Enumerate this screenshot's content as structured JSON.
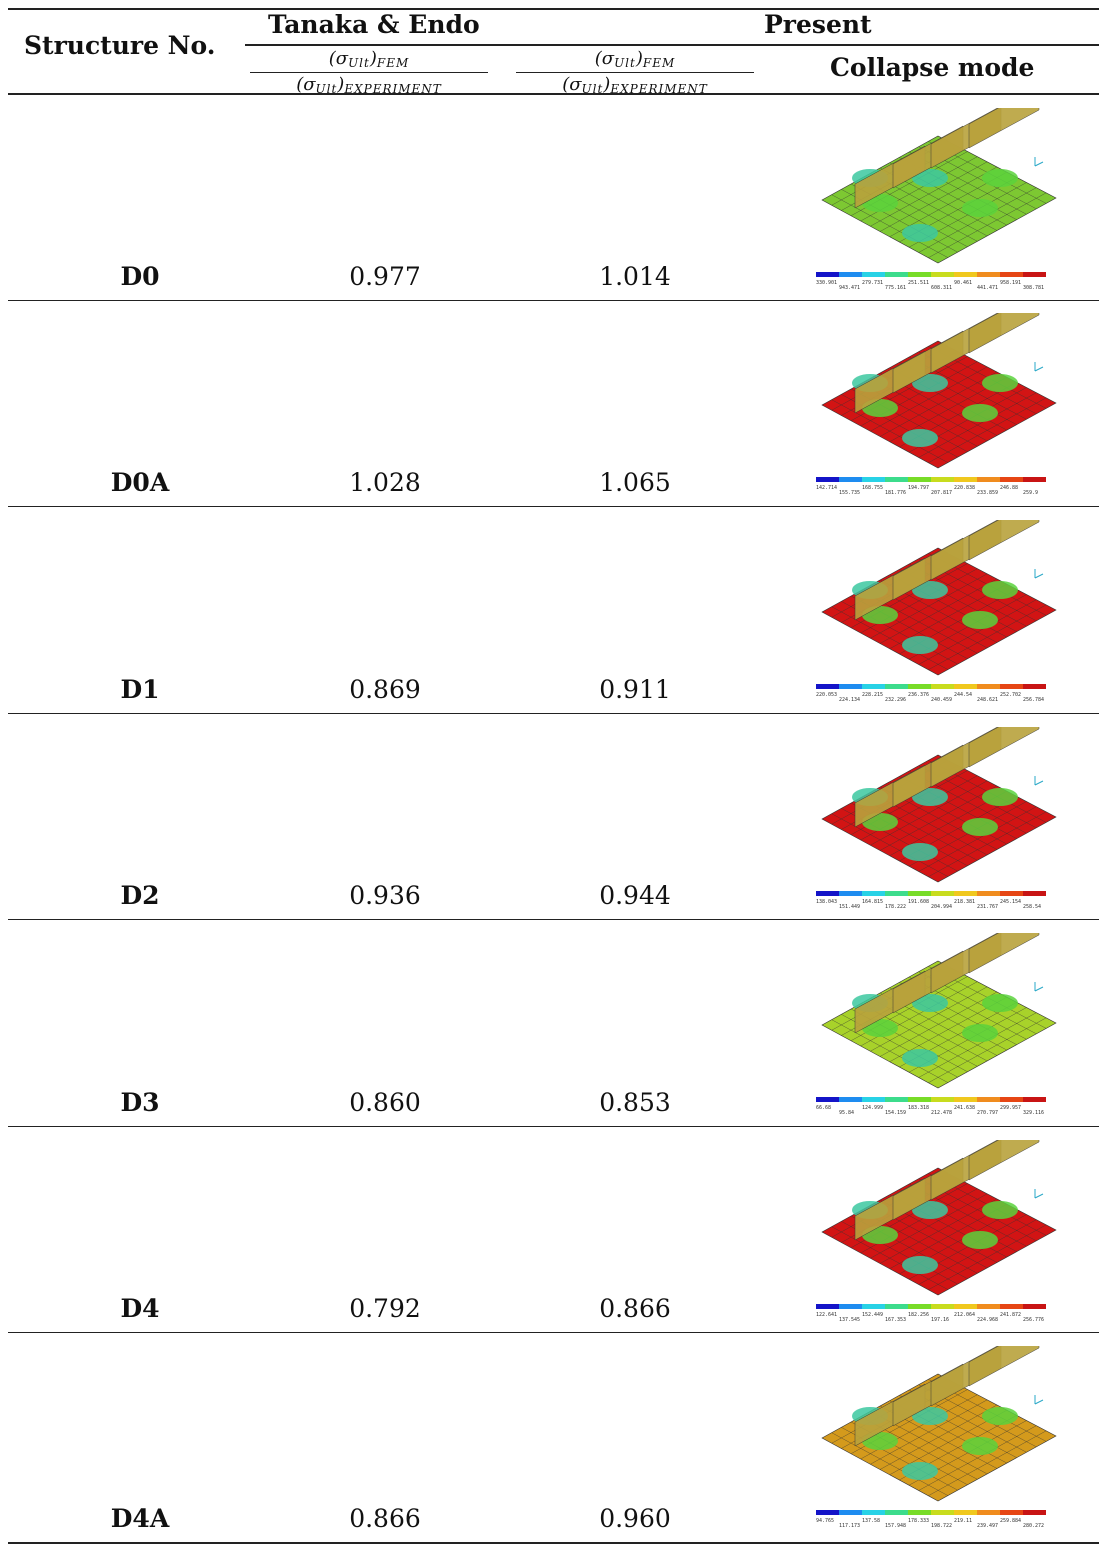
{
  "header": {
    "col1": "Structure No.",
    "col2": "Tanaka & Endo",
    "col3": "Present",
    "col4": "Collapse mode",
    "frac_num_main": "(σ",
    "frac_num_sub": "Ult",
    "frac_num_close": ")",
    "frac_num_sub2": "FEM",
    "frac_den_main": "(σ",
    "frac_den_sub": "Ult",
    "frac_den_close": ")",
    "frac_den_sub2": "EXPERIMENT"
  },
  "rows": [
    {
      "label": "D0",
      "tanaka": "0.977",
      "present": "1.014",
      "mode_icon": "collapse-mode-plot",
      "dominant_color": "#7dc832",
      "legend": [
        "330.901",
        "943.471",
        "279.731",
        "775.161",
        "251.511",
        "608.311",
        "90.461",
        "441.471",
        "958.191",
        "308.781"
      ]
    },
    {
      "label": "D0A",
      "tanaka": "1.028",
      "present": "1.065",
      "mode_icon": "collapse-mode-plot",
      "dominant_color": "#d21414",
      "legend": [
        "142.714",
        "155.735",
        "168.755",
        "181.776",
        "194.797",
        "207.817",
        "220.838",
        "233.859",
        "246.88",
        "259.9"
      ]
    },
    {
      "label": "D1",
      "tanaka": "0.869",
      "present": "0.911",
      "mode_icon": "collapse-mode-plot",
      "dominant_color": "#d21414",
      "legend": [
        "220.053",
        "224.134",
        "228.215",
        "232.296",
        "236.376",
        "240.459",
        "244.54",
        "248.621",
        "252.702",
        "256.784"
      ]
    },
    {
      "label": "D2",
      "tanaka": "0.936",
      "present": "0.944",
      "mode_icon": "collapse-mode-plot",
      "dominant_color": "#d21414",
      "legend": [
        "138.043",
        "151.449",
        "164.815",
        "178.222",
        "191.608",
        "204.994",
        "218.381",
        "231.767",
        "245.154",
        "258.54"
      ]
    },
    {
      "label": "D3",
      "tanaka": "0.860",
      "present": "0.853",
      "mode_icon": "collapse-mode-plot",
      "dominant_color": "#a8d22a",
      "legend": [
        "66.68",
        "95.84",
        "124.999",
        "154.159",
        "183.318",
        "212.478",
        "241.638",
        "270.797",
        "299.957",
        "329.116"
      ]
    },
    {
      "label": "D4",
      "tanaka": "0.792",
      "present": "0.866",
      "mode_icon": "collapse-mode-plot",
      "dominant_color": "#d21414",
      "legend": [
        "122.641",
        "137.545",
        "152.449",
        "167.353",
        "182.256",
        "197.16",
        "212.064",
        "224.968",
        "241.872",
        "256.776"
      ]
    },
    {
      "label": "D4A",
      "tanaka": "0.866",
      "present": "0.960",
      "mode_icon": "collapse-mode-plot",
      "dominant_color": "#d49a1c",
      "legend": [
        "94.765",
        "117.173",
        "137.58",
        "157.948",
        "178.333",
        "198.722",
        "219.11",
        "239.497",
        "259.884",
        "280.272"
      ]
    }
  ]
}
